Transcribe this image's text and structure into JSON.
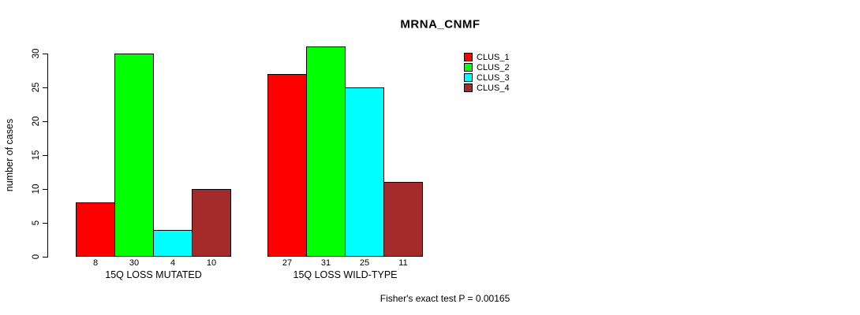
{
  "chart_data": {
    "type": "bar",
    "title": "MRNA_CNMF",
    "ylabel": "number of cases",
    "xlabel": "",
    "ylim": [
      0,
      31
    ],
    "yticks": [
      0,
      5,
      10,
      15,
      20,
      25,
      30
    ],
    "grid": false,
    "legend_position": "right-top",
    "legend": [
      "CLUS_1",
      "CLUS_2",
      "CLUS_3",
      "CLUS_4"
    ],
    "colors": [
      "#ff0000",
      "#00ff00",
      "#00ffff",
      "#a52a2a"
    ],
    "categories": [
      "15Q LOSS MUTATED",
      "15Q LOSS WILD-TYPE"
    ],
    "series": [
      {
        "name": "CLUS_1",
        "values": [
          8,
          27
        ]
      },
      {
        "name": "CLUS_2",
        "values": [
          30,
          31
        ]
      },
      {
        "name": "CLUS_3",
        "values": [
          4,
          25
        ]
      },
      {
        "name": "CLUS_4",
        "values": [
          10,
          11
        ]
      }
    ],
    "groups": [
      {
        "label": "15Q LOSS MUTATED",
        "values": [
          8,
          30,
          4,
          10
        ]
      },
      {
        "label": "15Q LOSS WILD-TYPE",
        "values": [
          27,
          31,
          25,
          11
        ]
      }
    ],
    "bar_value_labels": [
      [
        8,
        30,
        4,
        10
      ],
      [
        27,
        31,
        25,
        11
      ]
    ],
    "annotation": "Fisher's exact test P = 0.00165",
    "text_color": "#000000",
    "background_color": "#ffffff"
  }
}
